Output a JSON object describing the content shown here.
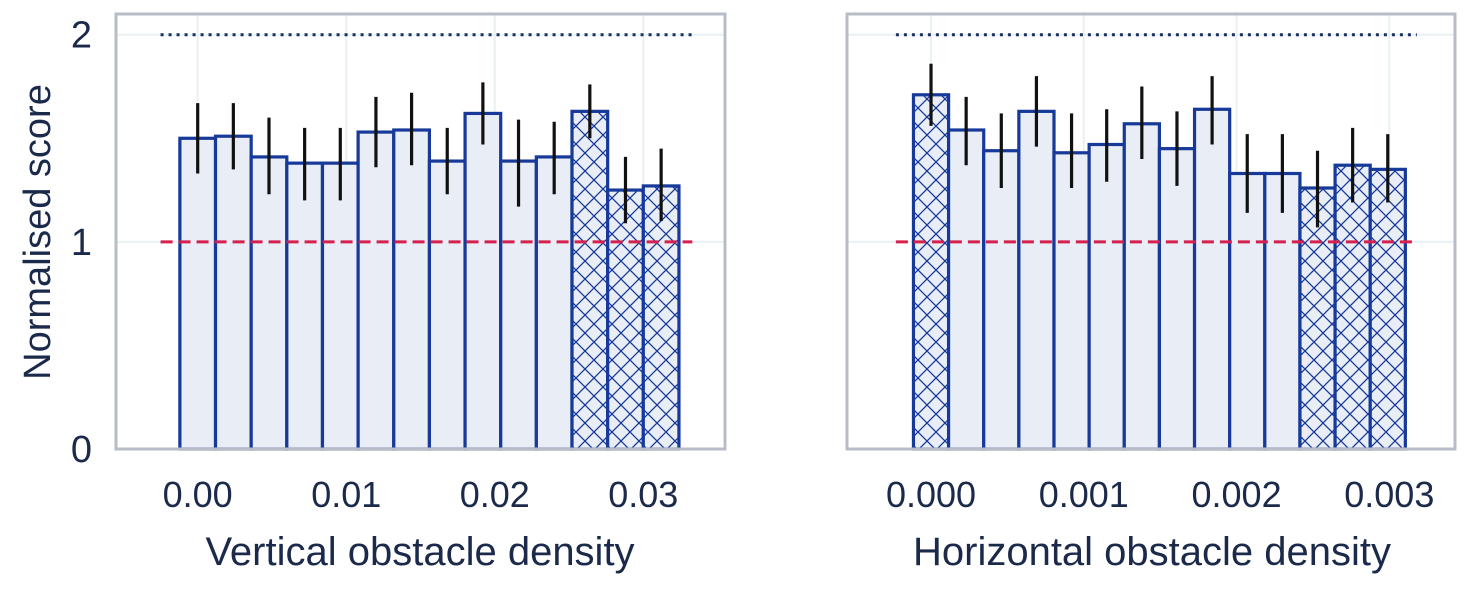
{
  "colors": {
    "bar_fill": "#e8edf6",
    "bar_edge": "#16399a",
    "error_bar": "#111111",
    "ref_dotted": "#1b3266",
    "ref_dashed": "#d6204d",
    "axes_frame": "#b7bcc6",
    "grid": "#e9f1f4",
    "text": "#1b2a4a"
  },
  "ylabel": "Normalised score",
  "chart_data": [
    {
      "type": "bar",
      "xlabel": "Vertical obstacle density",
      "ylabel": "Normalised score",
      "xlim": [
        -0.0055,
        0.0355
      ],
      "ylim": [
        0,
        2.1
      ],
      "xticks": [
        0.0,
        0.01,
        0.02,
        0.03
      ],
      "xtick_labels": [
        "0.00",
        "0.01",
        "0.02",
        "0.03"
      ],
      "yticks": [
        0,
        1,
        2
      ],
      "ytick_labels": [
        "0",
        "1",
        "2"
      ],
      "grid": true,
      "bar_width": 0.0024,
      "x": [
        0.0,
        0.0024,
        0.0048,
        0.0072,
        0.0096,
        0.012,
        0.0144,
        0.0168,
        0.0192,
        0.0216,
        0.024,
        0.0264,
        0.0288,
        0.0312
      ],
      "values": [
        1.5,
        1.51,
        1.41,
        1.38,
        1.38,
        1.53,
        1.54,
        1.39,
        1.62,
        1.39,
        1.41,
        1.63,
        1.25,
        1.27
      ],
      "error_low": [
        1.33,
        1.35,
        1.23,
        1.2,
        1.2,
        1.36,
        1.37,
        1.23,
        1.47,
        1.17,
        1.23,
        1.5,
        1.09,
        1.1
      ],
      "error_high": [
        1.67,
        1.67,
        1.6,
        1.55,
        1.55,
        1.7,
        1.72,
        1.55,
        1.77,
        1.59,
        1.58,
        1.76,
        1.41,
        1.45
      ],
      "hatched": [
        false,
        false,
        false,
        false,
        false,
        false,
        false,
        false,
        false,
        false,
        false,
        true,
        true,
        true
      ],
      "reference_lines": [
        {
          "y": 2.0,
          "style": "dotted",
          "x_range": [
            -0.0025,
            0.0333
          ]
        },
        {
          "y": 1.0,
          "style": "dashed",
          "x_range": [
            -0.0025,
            0.0333
          ]
        }
      ]
    },
    {
      "type": "bar",
      "xlabel": "Horizontal obstacle density",
      "xlim": [
        -0.00055,
        0.00343
      ],
      "ylim": [
        0,
        2.1
      ],
      "xticks": [
        0.0,
        0.001,
        0.002,
        0.003
      ],
      "xtick_labels": [
        "0.000",
        "0.001",
        "0.002",
        "0.003"
      ],
      "yticks": [
        0,
        1,
        2
      ],
      "grid": true,
      "bar_width": 0.00023,
      "x": [
        0.0,
        0.00023,
        0.00046,
        0.00069,
        0.00092,
        0.00115,
        0.00138,
        0.00161,
        0.00184,
        0.00207,
        0.0023,
        0.00253,
        0.00276,
        0.00299
      ],
      "values": [
        1.71,
        1.54,
        1.44,
        1.63,
        1.43,
        1.47,
        1.57,
        1.45,
        1.64,
        1.33,
        1.33,
        1.26,
        1.37,
        1.35
      ],
      "error_low": [
        1.56,
        1.37,
        1.26,
        1.46,
        1.26,
        1.29,
        1.4,
        1.27,
        1.47,
        1.14,
        1.14,
        1.07,
        1.19,
        1.19
      ],
      "error_high": [
        1.86,
        1.7,
        1.62,
        1.8,
        1.62,
        1.64,
        1.75,
        1.63,
        1.8,
        1.52,
        1.52,
        1.44,
        1.55,
        1.52
      ],
      "hatched": [
        true,
        false,
        false,
        false,
        false,
        false,
        false,
        false,
        false,
        false,
        false,
        true,
        true,
        true
      ],
      "reference_lines": [
        {
          "y": 2.0,
          "style": "dotted",
          "x_range": [
            -0.00023,
            0.00318
          ]
        },
        {
          "y": 1.0,
          "style": "dashed",
          "x_range": [
            -0.00023,
            0.00318
          ]
        }
      ]
    }
  ]
}
